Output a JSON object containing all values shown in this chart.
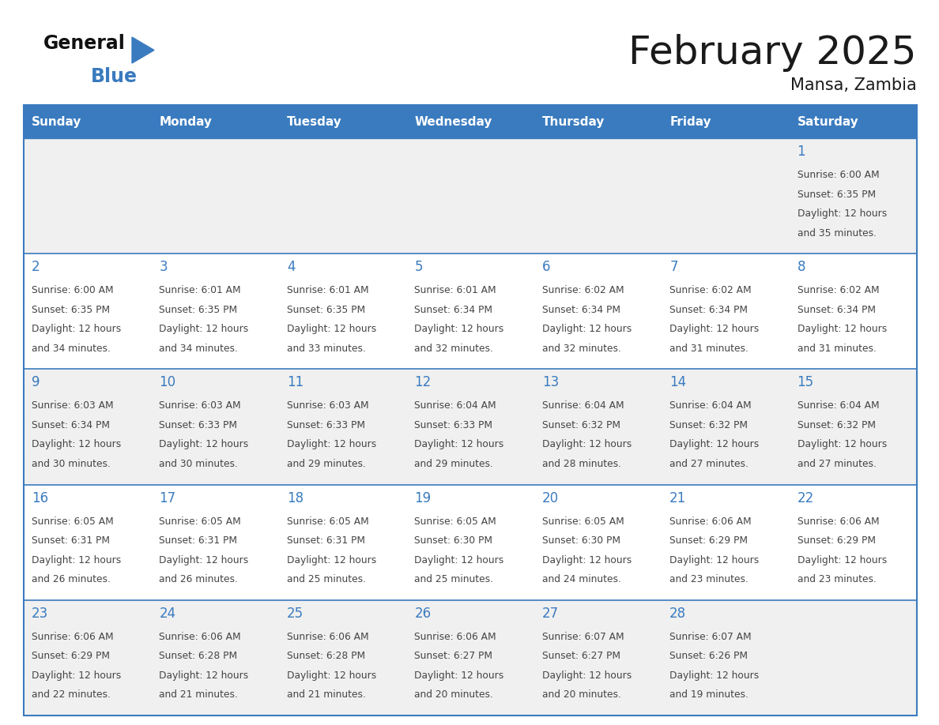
{
  "title": "February 2025",
  "subtitle": "Mansa, Zambia",
  "days_of_week": [
    "Sunday",
    "Monday",
    "Tuesday",
    "Wednesday",
    "Thursday",
    "Friday",
    "Saturday"
  ],
  "header_bg": "#3a7bbf",
  "header_text": "#ffffff",
  "cell_bg_odd": "#f0f0f0",
  "cell_bg_even": "#ffffff",
  "border_color": "#3a7bbf",
  "day_num_color": "#3a7bbf",
  "cell_text_color": "#444444",
  "weeks": [
    [
      {
        "day": null
      },
      {
        "day": null
      },
      {
        "day": null
      },
      {
        "day": null
      },
      {
        "day": null
      },
      {
        "day": null
      },
      {
        "day": 1,
        "sunrise": "6:00 AM",
        "sunset": "6:35 PM",
        "daylight_h": "12",
        "daylight_m": "35"
      }
    ],
    [
      {
        "day": 2,
        "sunrise": "6:00 AM",
        "sunset": "6:35 PM",
        "daylight_h": "12",
        "daylight_m": "34"
      },
      {
        "day": 3,
        "sunrise": "6:01 AM",
        "sunset": "6:35 PM",
        "daylight_h": "12",
        "daylight_m": "34"
      },
      {
        "day": 4,
        "sunrise": "6:01 AM",
        "sunset": "6:35 PM",
        "daylight_h": "12",
        "daylight_m": "33"
      },
      {
        "day": 5,
        "sunrise": "6:01 AM",
        "sunset": "6:34 PM",
        "daylight_h": "12",
        "daylight_m": "32"
      },
      {
        "day": 6,
        "sunrise": "6:02 AM",
        "sunset": "6:34 PM",
        "daylight_h": "12",
        "daylight_m": "32"
      },
      {
        "day": 7,
        "sunrise": "6:02 AM",
        "sunset": "6:34 PM",
        "daylight_h": "12",
        "daylight_m": "31"
      },
      {
        "day": 8,
        "sunrise": "6:02 AM",
        "sunset": "6:34 PM",
        "daylight_h": "12",
        "daylight_m": "31"
      }
    ],
    [
      {
        "day": 9,
        "sunrise": "6:03 AM",
        "sunset": "6:34 PM",
        "daylight_h": "12",
        "daylight_m": "30"
      },
      {
        "day": 10,
        "sunrise": "6:03 AM",
        "sunset": "6:33 PM",
        "daylight_h": "12",
        "daylight_m": "30"
      },
      {
        "day": 11,
        "sunrise": "6:03 AM",
        "sunset": "6:33 PM",
        "daylight_h": "12",
        "daylight_m": "29"
      },
      {
        "day": 12,
        "sunrise": "6:04 AM",
        "sunset": "6:33 PM",
        "daylight_h": "12",
        "daylight_m": "29"
      },
      {
        "day": 13,
        "sunrise": "6:04 AM",
        "sunset": "6:32 PM",
        "daylight_h": "12",
        "daylight_m": "28"
      },
      {
        "day": 14,
        "sunrise": "6:04 AM",
        "sunset": "6:32 PM",
        "daylight_h": "12",
        "daylight_m": "27"
      },
      {
        "day": 15,
        "sunrise": "6:04 AM",
        "sunset": "6:32 PM",
        "daylight_h": "12",
        "daylight_m": "27"
      }
    ],
    [
      {
        "day": 16,
        "sunrise": "6:05 AM",
        "sunset": "6:31 PM",
        "daylight_h": "12",
        "daylight_m": "26"
      },
      {
        "day": 17,
        "sunrise": "6:05 AM",
        "sunset": "6:31 PM",
        "daylight_h": "12",
        "daylight_m": "26"
      },
      {
        "day": 18,
        "sunrise": "6:05 AM",
        "sunset": "6:31 PM",
        "daylight_h": "12",
        "daylight_m": "25"
      },
      {
        "day": 19,
        "sunrise": "6:05 AM",
        "sunset": "6:30 PM",
        "daylight_h": "12",
        "daylight_m": "25"
      },
      {
        "day": 20,
        "sunrise": "6:05 AM",
        "sunset": "6:30 PM",
        "daylight_h": "12",
        "daylight_m": "24"
      },
      {
        "day": 21,
        "sunrise": "6:06 AM",
        "sunset": "6:29 PM",
        "daylight_h": "12",
        "daylight_m": "23"
      },
      {
        "day": 22,
        "sunrise": "6:06 AM",
        "sunset": "6:29 PM",
        "daylight_h": "12",
        "daylight_m": "23"
      }
    ],
    [
      {
        "day": 23,
        "sunrise": "6:06 AM",
        "sunset": "6:29 PM",
        "daylight_h": "12",
        "daylight_m": "22"
      },
      {
        "day": 24,
        "sunrise": "6:06 AM",
        "sunset": "6:28 PM",
        "daylight_h": "12",
        "daylight_m": "21"
      },
      {
        "day": 25,
        "sunrise": "6:06 AM",
        "sunset": "6:28 PM",
        "daylight_h": "12",
        "daylight_m": "21"
      },
      {
        "day": 26,
        "sunrise": "6:06 AM",
        "sunset": "6:27 PM",
        "daylight_h": "12",
        "daylight_m": "20"
      },
      {
        "day": 27,
        "sunrise": "6:07 AM",
        "sunset": "6:27 PM",
        "daylight_h": "12",
        "daylight_m": "20"
      },
      {
        "day": 28,
        "sunrise": "6:07 AM",
        "sunset": "6:26 PM",
        "daylight_h": "12",
        "daylight_m": "19"
      },
      {
        "day": null
      }
    ]
  ]
}
